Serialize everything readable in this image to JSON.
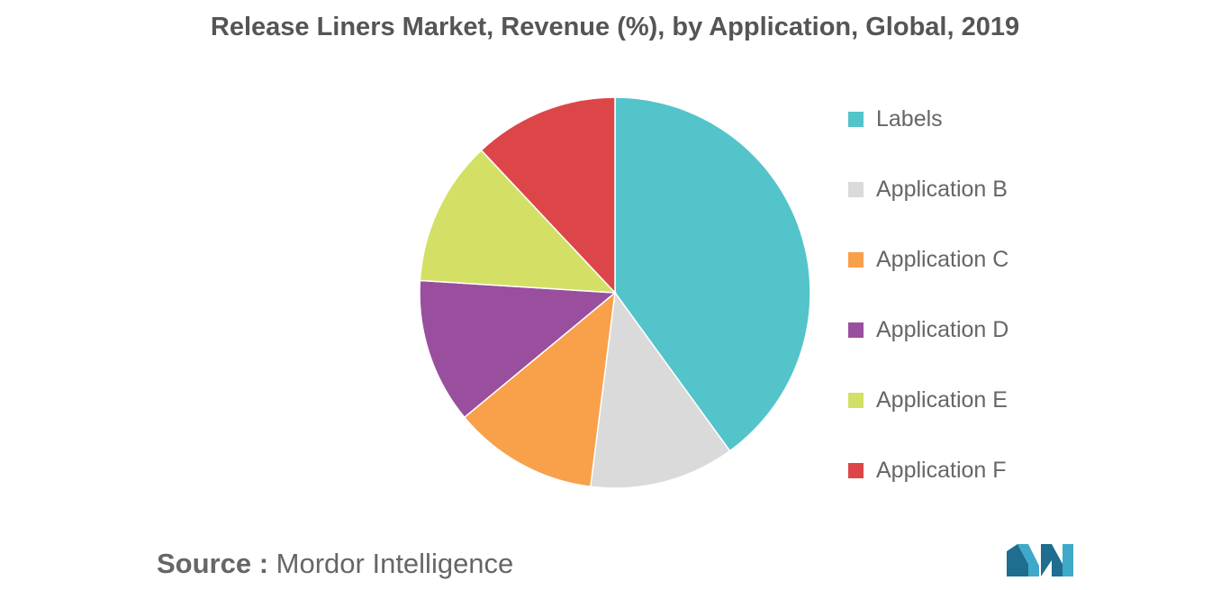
{
  "title": "Release Liners Market, Revenue (%), by Application, Global, 2019",
  "source": {
    "label": "Source :",
    "value": "Mordor Intelligence"
  },
  "logo_name": "mordor-intelligence-logo",
  "chart_data": {
    "type": "pie",
    "title": "Release Liners Market, Revenue (%), by Application, Global, 2019",
    "legend_position": "right",
    "slices": [
      {
        "label": "Labels",
        "value": 40,
        "color": "#52C4CA"
      },
      {
        "label": "Application B",
        "value": 12,
        "color": "#DADADA"
      },
      {
        "label": "Application C",
        "value": 12,
        "color": "#F9A04B"
      },
      {
        "label": "Application D",
        "value": 12,
        "color": "#9A4F9E"
      },
      {
        "label": "Application E",
        "value": 12,
        "color": "#D3E065"
      },
      {
        "label": "Application F",
        "value": 12,
        "color": "#DD4649"
      }
    ]
  }
}
